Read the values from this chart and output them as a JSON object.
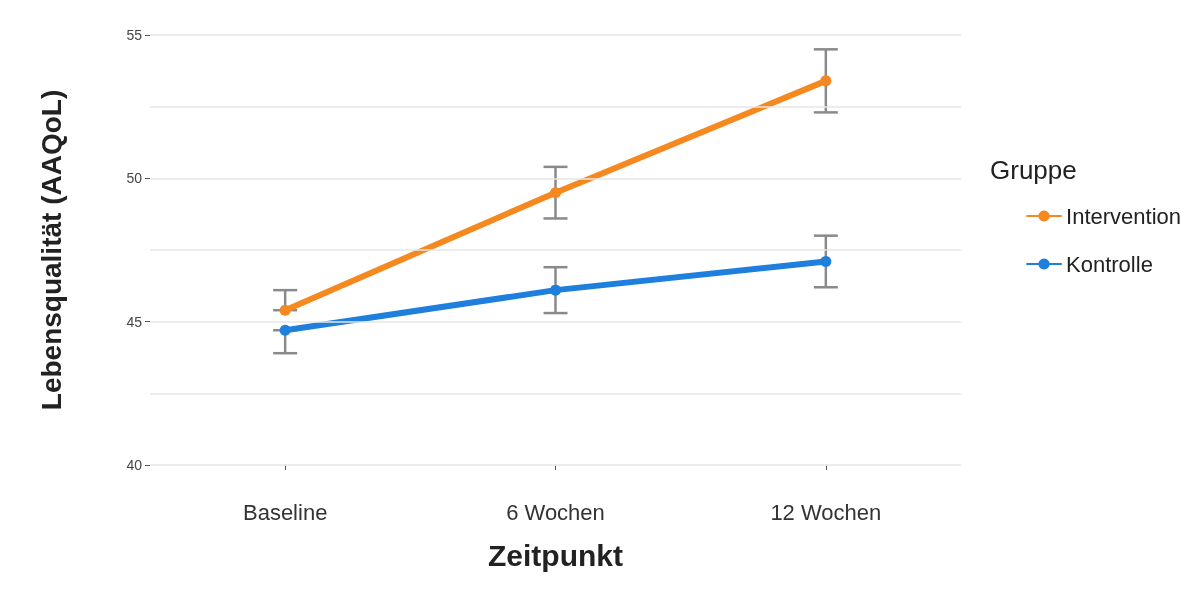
{
  "chart_data": {
    "type": "line",
    "xlabel": "Zeitpunkt",
    "ylabel": "Lebensqualität (AAQoL)",
    "legend_title": "Gruppe",
    "categories": [
      "Baseline",
      "6 Wochen",
      "12 Wochen"
    ],
    "series": [
      {
        "name": "Intervention",
        "color": "#f5891f",
        "values": [
          45.4,
          49.5,
          53.4
        ],
        "errors": [
          [
            45.4,
            46.1
          ],
          [
            48.6,
            50.4
          ],
          [
            52.3,
            54.5
          ]
        ]
      },
      {
        "name": "Kontrolle",
        "color": "#1f7fdc",
        "values": [
          44.7,
          46.1,
          47.1
        ],
        "errors": [
          [
            43.9,
            44.7
          ],
          [
            45.3,
            46.9
          ],
          [
            46.2,
            48.0
          ]
        ]
      }
    ],
    "ylim": [
      40,
      55
    ],
    "yticks": [
      40,
      {
        "value": 42.5,
        "label": null
      },
      45,
      {
        "value": 47.5,
        "label": null
      },
      50,
      {
        "value": 52.5,
        "label": null
      },
      55
    ],
    "grid": "y",
    "legend": "right",
    "marker": "circle",
    "line_style": "solid"
  }
}
